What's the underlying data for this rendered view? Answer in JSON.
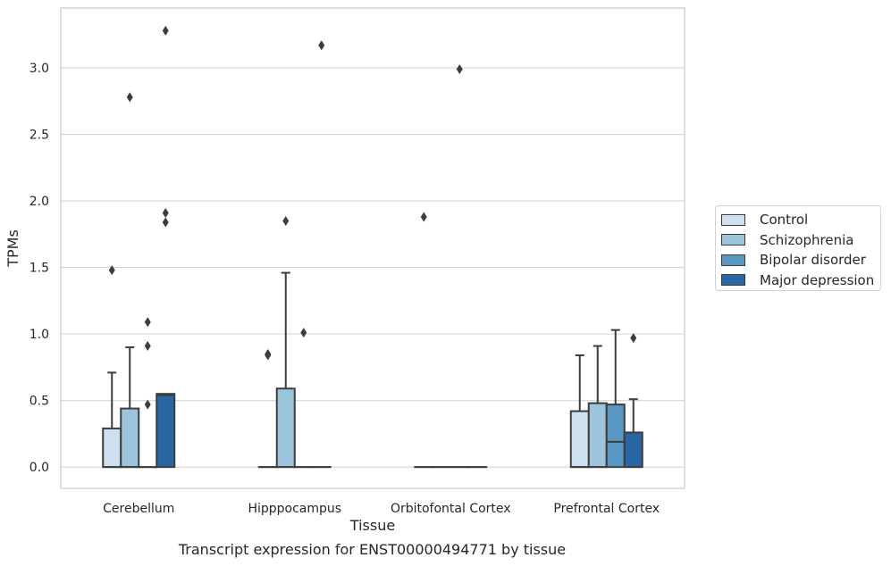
{
  "chart_data": {
    "type": "box",
    "xlabel": "Tissue",
    "ylabel": "TPMs",
    "ylim": [
      -0.16,
      3.45
    ],
    "yticks": [
      0.0,
      0.5,
      1.0,
      1.5,
      2.0,
      2.5,
      3.0
    ],
    "ytick_labels": [
      "0.0",
      "0.5",
      "1.0",
      "1.5",
      "2.0",
      "2.5",
      "3.0"
    ],
    "categories": [
      "Cerebellum",
      "Hipppocampus",
      "Orbitofontal Cortex",
      "Prefrontal Cortex"
    ],
    "grid": "horizontal",
    "legend_position": "right",
    "series": [
      {
        "name": "Control",
        "color": "#cfe1f0",
        "boxes": [
          {
            "q1": 0.0,
            "median": 0.0,
            "q3": 0.29,
            "whisker_low": 0.0,
            "whisker_high": 0.71,
            "outliers": [
              1.48
            ]
          },
          {
            "q1": 0.0,
            "median": 0.0,
            "q3": 0.0,
            "whisker_low": 0.0,
            "whisker_high": 0.0,
            "outliers": [
              0.85,
              0.84
            ]
          },
          {
            "q1": 0.0,
            "median": 0.0,
            "q3": 0.0,
            "whisker_low": 0.0,
            "whisker_high": 0.0,
            "outliers": [
              1.88
            ]
          },
          {
            "q1": 0.0,
            "median": 0.0,
            "q3": 0.42,
            "whisker_low": 0.0,
            "whisker_high": 0.84,
            "outliers": []
          }
        ]
      },
      {
        "name": "Schizophrenia",
        "color": "#9cc4dd",
        "boxes": [
          {
            "q1": 0.0,
            "median": 0.0,
            "q3": 0.44,
            "whisker_low": 0.0,
            "whisker_high": 0.9,
            "outliers": [
              2.78
            ]
          },
          {
            "q1": 0.0,
            "median": 0.0,
            "q3": 0.59,
            "whisker_low": 0.0,
            "whisker_high": 1.46,
            "outliers": [
              1.85
            ]
          },
          {
            "q1": 0.0,
            "median": 0.0,
            "q3": 0.0,
            "whisker_low": 0.0,
            "whisker_high": 0.0,
            "outliers": []
          },
          {
            "q1": 0.0,
            "median": 0.0,
            "q3": 0.48,
            "whisker_low": 0.0,
            "whisker_high": 0.91,
            "outliers": []
          }
        ]
      },
      {
        "name": "Bipolar disorder",
        "color": "#5998c3",
        "boxes": [
          {
            "q1": 0.0,
            "median": 0.0,
            "q3": 0.0,
            "whisker_low": 0.0,
            "whisker_high": 0.0,
            "outliers": [
              1.09,
              0.91,
              0.47
            ]
          },
          {
            "q1": 0.0,
            "median": 0.0,
            "q3": 0.0,
            "whisker_low": 0.0,
            "whisker_high": 0.0,
            "outliers": [
              1.01
            ]
          },
          {
            "q1": 0.0,
            "median": 0.0,
            "q3": 0.0,
            "whisker_low": 0.0,
            "whisker_high": 0.0,
            "outliers": [
              2.99
            ]
          },
          {
            "q1": 0.0,
            "median": 0.19,
            "q3": 0.47,
            "whisker_low": 0.0,
            "whisker_high": 1.03,
            "outliers": []
          }
        ]
      },
      {
        "name": "Major depression",
        "color": "#2866a4",
        "boxes": [
          {
            "q1": 0.0,
            "median": 0.54,
            "q3": 0.55,
            "whisker_low": 0.0,
            "whisker_high": 0.55,
            "outliers": [
              3.28,
              1.91,
              1.84
            ]
          },
          {
            "q1": 0.0,
            "median": 0.0,
            "q3": 0.0,
            "whisker_low": 0.0,
            "whisker_high": 0.0,
            "outliers": [
              3.17
            ]
          },
          {
            "q1": 0.0,
            "median": 0.0,
            "q3": 0.0,
            "whisker_low": 0.0,
            "whisker_high": 0.0,
            "outliers": []
          },
          {
            "q1": 0.0,
            "median": 0.0,
            "q3": 0.26,
            "whisker_low": 0.0,
            "whisker_high": 0.51,
            "outliers": [
              0.97
            ]
          }
        ]
      }
    ]
  },
  "caption": "Transcript expression for ENST00000494771 by tissue"
}
